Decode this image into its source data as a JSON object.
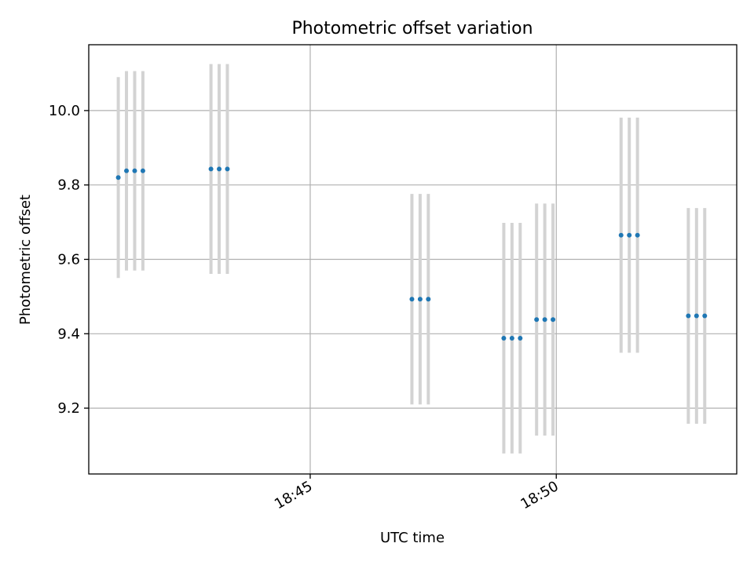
{
  "chart_data": {
    "type": "scatter",
    "title": "Photometric offset variation",
    "xlabel": "UTC time",
    "ylabel": "Photometric offset",
    "x_tick_labels": [
      "18:45",
      "18:50"
    ],
    "x_ticks": [
      "18:45",
      "18:50"
    ],
    "xlim": [
      "18:40:30",
      "18:53:40"
    ],
    "y_ticks": [
      9.2,
      9.4,
      9.6,
      9.8,
      10.0
    ],
    "y_tick_labels": [
      "9.2",
      "9.4",
      "9.6",
      "9.8",
      "10.0"
    ],
    "ylim": [
      9.023,
      10.177
    ],
    "grid": true,
    "colors": {
      "points": "#1f77b4",
      "errorbars": "#d3d3d3"
    },
    "series": [
      {
        "x": [
          "18:41:06",
          "18:41:16",
          "18:41:26",
          "18:41:36",
          "18:42:59",
          "18:43:09",
          "18:43:19",
          "18:47:04",
          "18:47:14",
          "18:47:24",
          "18:48:56",
          "18:49:06",
          "18:49:16",
          "18:49:36",
          "18:49:46",
          "18:49:56",
          "18:51:19",
          "18:51:29",
          "18:51:39",
          "18:52:41",
          "18:52:51",
          "18:53:01"
        ],
        "y": [
          9.82,
          9.838,
          9.838,
          9.838,
          9.843,
          9.843,
          9.843,
          9.493,
          9.493,
          9.493,
          9.388,
          9.388,
          9.388,
          9.438,
          9.438,
          9.438,
          9.665,
          9.665,
          9.665,
          9.448,
          9.448,
          9.448
        ],
        "err": [
          0.27,
          0.268,
          0.268,
          0.268,
          0.282,
          0.282,
          0.282,
          0.283,
          0.283,
          0.283,
          0.31,
          0.31,
          0.31,
          0.312,
          0.312,
          0.312,
          0.316,
          0.316,
          0.316,
          0.29,
          0.29,
          0.29
        ]
      }
    ]
  }
}
